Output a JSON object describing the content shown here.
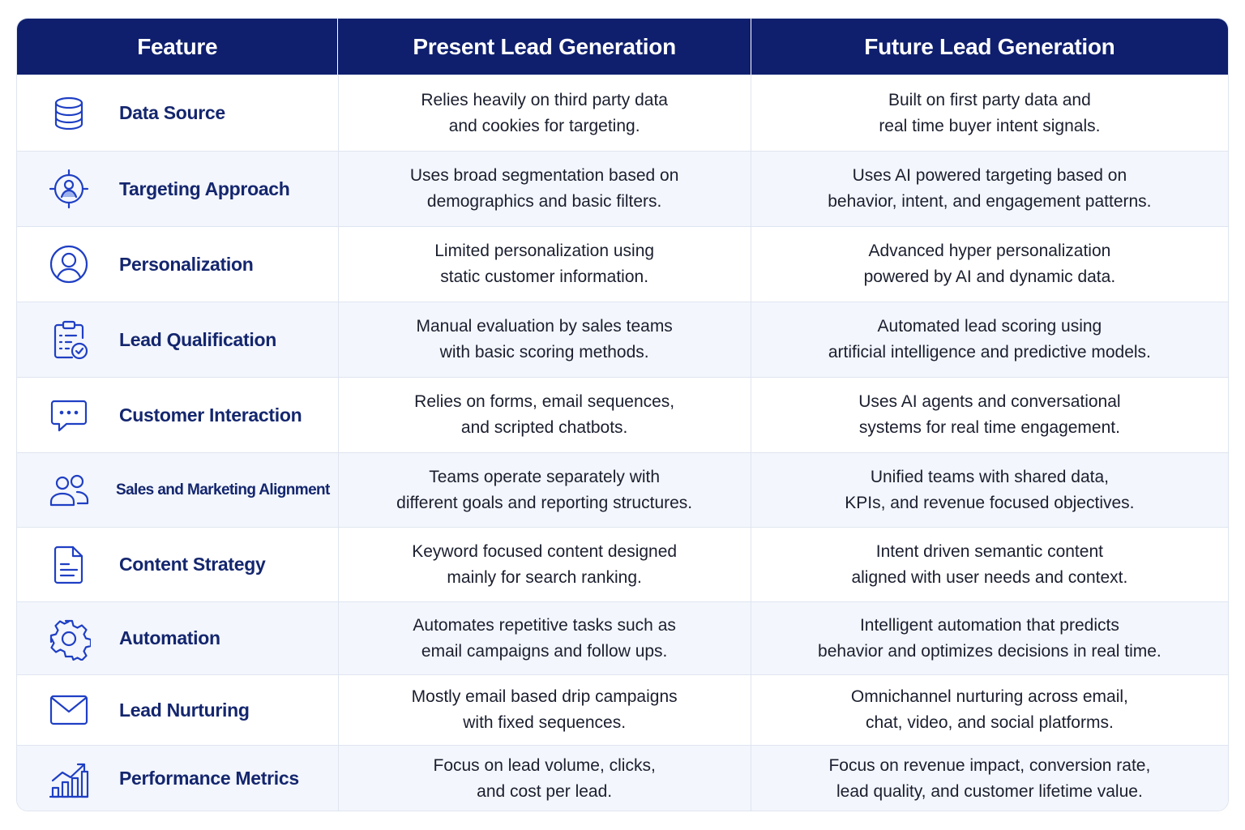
{
  "header": {
    "feature": "Feature",
    "present": "Present Lead Generation",
    "future": "Future Lead Generation"
  },
  "colors": {
    "header_bg": "#0f1f6e",
    "accent": "#1f3fc4",
    "feature_text": "#14266e",
    "alt_row_bg": "#f3f6fc"
  },
  "rows": [
    {
      "icon": "database-icon",
      "feature": "Data Source",
      "present": [
        "Relies heavily on third party data",
        "and cookies for targeting."
      ],
      "future": [
        "Built on first party data and",
        "real time buyer intent signals."
      ]
    },
    {
      "icon": "target-user-icon",
      "feature": "Targeting Approach",
      "present": [
        "Uses broad segmentation based on",
        "demographics and basic filters."
      ],
      "future": [
        "Uses AI powered targeting based on",
        "behavior, intent, and engagement patterns."
      ]
    },
    {
      "icon": "user-circle-icon",
      "feature": "Personalization",
      "present": [
        "Limited personalization using",
        "static customer information."
      ],
      "future": [
        "Advanced hyper personalization",
        "powered by AI and dynamic data."
      ]
    },
    {
      "icon": "clipboard-check-icon",
      "feature": "Lead Qualification",
      "present": [
        "Manual evaluation by sales teams",
        "with basic scoring methods."
      ],
      "future": [
        "Automated lead scoring using",
        "artificial intelligence and predictive models."
      ]
    },
    {
      "icon": "chat-bubble-icon",
      "feature": "Customer Interaction",
      "present": [
        "Relies on forms, email sequences,",
        "and scripted chatbots."
      ],
      "future": [
        "Uses AI agents and conversational",
        "systems for real time engagement."
      ]
    },
    {
      "icon": "users-icon",
      "feature": "Sales and Marketing Alignment",
      "present": [
        "Teams operate separately with",
        "different goals and reporting structures."
      ],
      "future": [
        "Unified teams with shared data,",
        "KPIs, and revenue focused objectives."
      ]
    },
    {
      "icon": "document-icon",
      "feature": "Content Strategy",
      "present": [
        "Keyword focused content designed",
        "mainly for search ranking."
      ],
      "future": [
        "Intent driven semantic content",
        "aligned with user needs and context."
      ]
    },
    {
      "icon": "gear-icon",
      "feature": "Automation",
      "present": [
        "Automates repetitive tasks such as",
        "email campaigns and follow ups."
      ],
      "future": [
        "Intelligent automation that predicts",
        "behavior and optimizes decisions in real time."
      ]
    },
    {
      "icon": "envelope-icon",
      "feature": "Lead Nurturing",
      "present": [
        "Mostly email based drip campaigns",
        "with fixed sequences."
      ],
      "future": [
        "Omnichannel nurturing across email,",
        "chat, video, and social platforms."
      ]
    },
    {
      "icon": "bar-chart-trend-icon",
      "feature": "Performance Metrics",
      "present": [
        "Focus on lead volume, clicks,",
        "and cost per lead."
      ],
      "future": [
        "Focus on revenue impact, conversion rate,",
        "lead quality, and customer lifetime value."
      ]
    }
  ]
}
